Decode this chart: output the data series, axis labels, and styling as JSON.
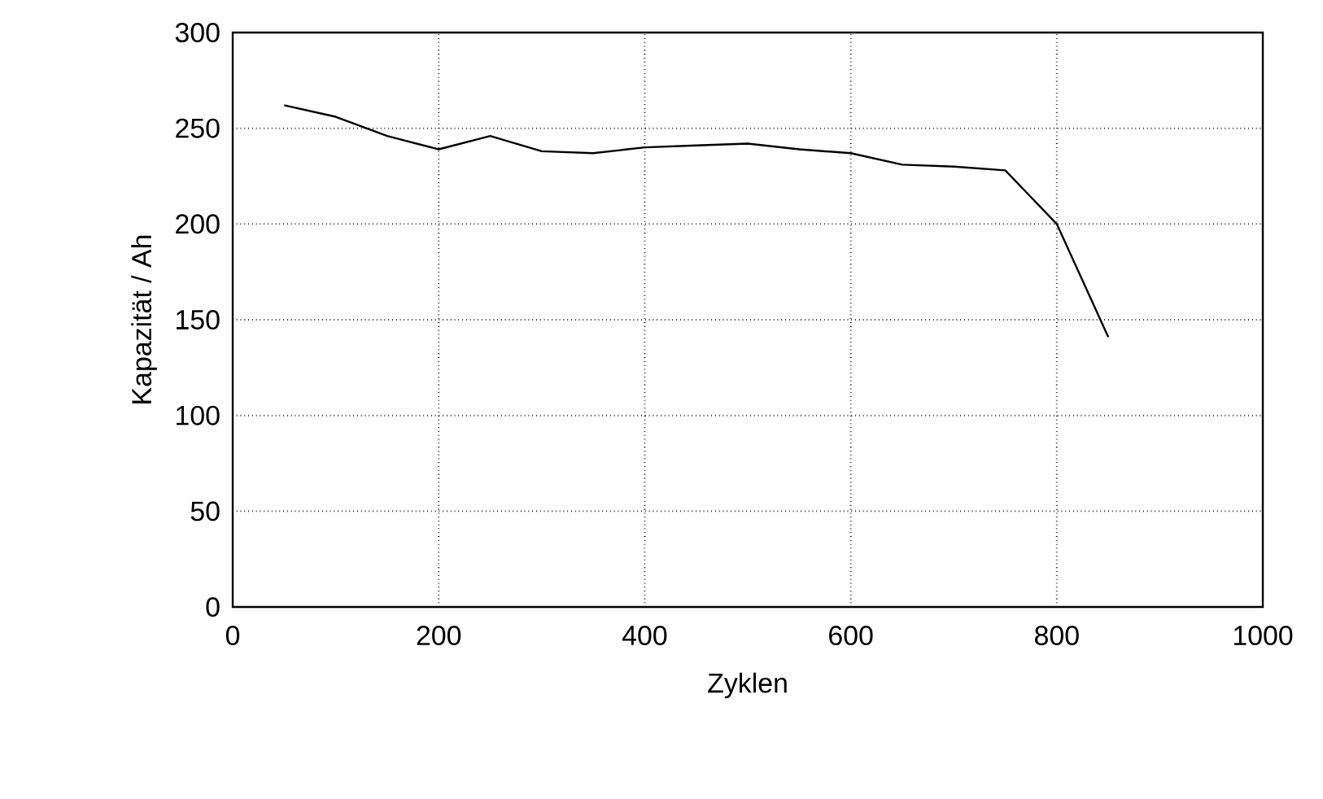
{
  "chart_data": {
    "type": "line",
    "xlabel": "Zyklen",
    "ylabel": "Kapazität / Ah",
    "x": [
      50,
      100,
      150,
      200,
      250,
      300,
      350,
      400,
      450,
      500,
      550,
      600,
      650,
      700,
      750,
      800,
      850
    ],
    "values": [
      262,
      256,
      246,
      239,
      246,
      238,
      237,
      240,
      241,
      242,
      239,
      237,
      231,
      230,
      228,
      200,
      141
    ],
    "color": "#000000",
    "xlim": [
      0,
      1000
    ],
    "ylim": [
      0,
      300
    ],
    "xticks": [
      0,
      200,
      400,
      600,
      800,
      1000
    ],
    "yticks": [
      0,
      50,
      100,
      150,
      200,
      250,
      300
    ],
    "grid": true,
    "marker": "none",
    "line_style": "solid"
  }
}
